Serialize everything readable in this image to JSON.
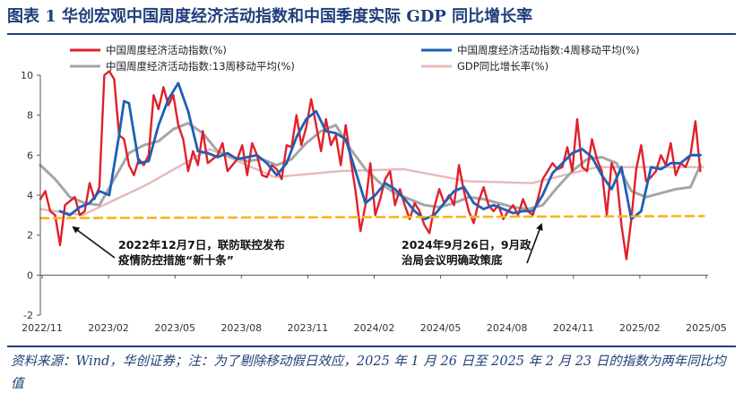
{
  "title": "图表 1   华创宏观中国周度经济活动指数和中国季度实际 GDP 同比增长率",
  "source_note": "资料来源：Wind，华创证券；注：为了剔除移动假日效应，2025 年 1 月 26 日至 2025 年 2 月 23 日的指数为两年同比均值",
  "annotations": [
    {
      "lines": [
        "2022年12月7日，联防联控发布",
        "疫情防控措施“新十条”"
      ],
      "date": "2022-12-07"
    },
    {
      "lines": [
        "2024年9月26日，9月政",
        "治局会议明确政策底"
      ],
      "date": "2024-09-26"
    }
  ],
  "chart_data": {
    "type": "line",
    "x_tick_labels": [
      "2022/11",
      "2023/02",
      "2023/05",
      "2023/08",
      "2023/11",
      "2024/02",
      "2024/05",
      "2024/08",
      "2024/11",
      "2025/02",
      "2025/05"
    ],
    "y_tick_labels": [
      "-2",
      "0",
      "2",
      "4",
      "6",
      "8",
      "10"
    ],
    "ylim": [
      -2,
      10
    ],
    "xlim": [
      "2022-11-01",
      "2025-06-07"
    ],
    "grid": false,
    "legend": "top",
    "colors": {
      "weekly": "#e0202a",
      "ma4": "#1f5fb4",
      "ma13": "#a6a6a6",
      "gdp": "#e8b8b8",
      "reference": "#f6b51e"
    },
    "series": [
      {
        "name": "中国周度经济活动指数(%)",
        "key": "weekly",
        "points": [
          [
            "2022-11-01",
            3.8
          ],
          [
            "2022-11-08",
            4.2
          ],
          [
            "2022-11-15",
            3.2
          ],
          [
            "2022-11-22",
            3.0
          ],
          [
            "2022-11-29",
            1.5
          ],
          [
            "2022-12-06",
            3.5
          ],
          [
            "2022-12-13",
            3.7
          ],
          [
            "2022-12-20",
            3.9
          ],
          [
            "2022-12-27",
            3.0
          ],
          [
            "2023-01-03",
            3.2
          ],
          [
            "2023-01-10",
            4.6
          ],
          [
            "2023-01-17",
            3.8
          ],
          [
            "2023-01-24",
            4.4
          ],
          [
            "2023-01-31",
            10.0
          ],
          [
            "2023-02-07",
            10.2
          ],
          [
            "2023-02-14",
            9.8
          ],
          [
            "2023-02-21",
            7.0
          ],
          [
            "2023-02-28",
            6.8
          ],
          [
            "2023-03-07",
            5.5
          ],
          [
            "2023-03-14",
            5.0
          ],
          [
            "2023-03-21",
            5.8
          ],
          [
            "2023-03-28",
            5.5
          ],
          [
            "2023-04-04",
            6.0
          ],
          [
            "2023-04-11",
            9.0
          ],
          [
            "2023-04-18",
            8.3
          ],
          [
            "2023-04-25",
            9.4
          ],
          [
            "2023-05-02",
            8.5
          ],
          [
            "2023-05-09",
            9.0
          ],
          [
            "2023-05-16",
            7.5
          ],
          [
            "2023-05-23",
            6.8
          ],
          [
            "2023-05-30",
            5.2
          ],
          [
            "2023-06-06",
            6.2
          ],
          [
            "2023-06-13",
            5.5
          ],
          [
            "2023-06-20",
            7.2
          ],
          [
            "2023-06-27",
            5.6
          ],
          [
            "2023-07-04",
            5.8
          ],
          [
            "2023-07-11",
            6.0
          ],
          [
            "2023-07-18",
            6.6
          ],
          [
            "2023-07-25",
            5.2
          ],
          [
            "2023-08-01",
            5.5
          ],
          [
            "2023-08-08",
            5.8
          ],
          [
            "2023-08-15",
            6.5
          ],
          [
            "2023-08-22",
            5.0
          ],
          [
            "2023-08-29",
            6.6
          ],
          [
            "2023-09-05",
            6.0
          ],
          [
            "2023-09-12",
            5.0
          ],
          [
            "2023-09-19",
            4.9
          ],
          [
            "2023-09-26",
            5.5
          ],
          [
            "2023-10-03",
            5.3
          ],
          [
            "2023-10-10",
            4.8
          ],
          [
            "2023-10-17",
            6.5
          ],
          [
            "2023-10-24",
            6.4
          ],
          [
            "2023-10-31",
            8.0
          ],
          [
            "2023-11-07",
            6.5
          ],
          [
            "2023-11-14",
            7.4
          ],
          [
            "2023-11-21",
            8.8
          ],
          [
            "2023-11-28",
            7.5
          ],
          [
            "2023-12-05",
            6.2
          ],
          [
            "2023-12-12",
            7.8
          ],
          [
            "2023-12-19",
            6.5
          ],
          [
            "2023-12-26",
            7.0
          ],
          [
            "2024-01-02",
            5.5
          ],
          [
            "2024-01-09",
            7.5
          ],
          [
            "2024-01-16",
            5.8
          ],
          [
            "2024-01-23",
            4.2
          ],
          [
            "2024-01-30",
            2.2
          ],
          [
            "2024-02-06",
            3.5
          ],
          [
            "2024-02-13",
            5.6
          ],
          [
            "2024-02-20",
            3.0
          ],
          [
            "2024-02-27",
            3.8
          ],
          [
            "2024-03-05",
            4.8
          ],
          [
            "2024-03-12",
            5.2
          ],
          [
            "2024-03-19",
            3.5
          ],
          [
            "2024-03-26",
            4.3
          ],
          [
            "2024-04-02",
            3.5
          ],
          [
            "2024-04-09",
            2.8
          ],
          [
            "2024-04-16",
            3.6
          ],
          [
            "2024-04-23",
            3.2
          ],
          [
            "2024-04-30",
            2.5
          ],
          [
            "2024-05-07",
            2.1
          ],
          [
            "2024-05-14",
            3.4
          ],
          [
            "2024-05-21",
            4.3
          ],
          [
            "2024-05-28",
            3.6
          ],
          [
            "2024-06-04",
            4.0
          ],
          [
            "2024-06-11",
            3.5
          ],
          [
            "2024-06-18",
            5.5
          ],
          [
            "2024-06-25",
            4.2
          ],
          [
            "2024-07-02",
            3.2
          ],
          [
            "2024-07-09",
            2.6
          ],
          [
            "2024-07-16",
            3.7
          ],
          [
            "2024-07-23",
            4.4
          ],
          [
            "2024-07-30",
            3.5
          ],
          [
            "2024-08-06",
            3.2
          ],
          [
            "2024-08-13",
            3.5
          ],
          [
            "2024-08-20",
            2.8
          ],
          [
            "2024-08-27",
            3.2
          ],
          [
            "2024-09-03",
            3.5
          ],
          [
            "2024-09-10",
            3.0
          ],
          [
            "2024-09-17",
            3.8
          ],
          [
            "2024-09-24",
            3.2
          ],
          [
            "2024-10-01",
            3.0
          ],
          [
            "2024-10-08",
            3.8
          ],
          [
            "2024-10-15",
            4.8
          ],
          [
            "2024-10-22",
            5.2
          ],
          [
            "2024-10-29",
            5.6
          ],
          [
            "2024-11-05",
            5.3
          ],
          [
            "2024-11-12",
            5.4
          ],
          [
            "2024-11-19",
            6.4
          ],
          [
            "2024-11-26",
            5.2
          ],
          [
            "2024-12-03",
            7.8
          ],
          [
            "2024-12-10",
            5.4
          ],
          [
            "2024-12-17",
            5.2
          ],
          [
            "2024-12-24",
            6.8
          ],
          [
            "2024-12-31",
            5.8
          ],
          [
            "2025-01-07",
            5.2
          ],
          [
            "2025-01-14",
            3.0
          ],
          [
            "2025-01-21",
            5.6
          ],
          [
            "2025-01-28",
            5.0
          ],
          [
            "2025-02-04",
            2.5
          ],
          [
            "2025-02-11",
            0.8
          ],
          [
            "2025-02-18",
            2.8
          ],
          [
            "2025-02-25",
            5.3
          ],
          [
            "2025-03-04",
            6.5
          ],
          [
            "2025-03-11",
            4.7
          ],
          [
            "2025-03-18",
            4.9
          ],
          [
            "2025-03-25",
            5.2
          ],
          [
            "2025-04-01",
            6.0
          ],
          [
            "2025-04-08",
            5.5
          ],
          [
            "2025-04-15",
            6.6
          ],
          [
            "2025-04-22",
            5.0
          ],
          [
            "2025-04-29",
            5.6
          ],
          [
            "2025-05-06",
            5.4
          ],
          [
            "2025-05-13",
            6.0
          ],
          [
            "2025-05-20",
            7.7
          ],
          [
            "2025-05-27",
            5.2
          ]
        ]
      },
      {
        "name": "中国周度经济活动指数:4周移动平均(%)",
        "key": "ma4",
        "points": [
          [
            "2022-11-29",
            3.2
          ],
          [
            "2022-12-13",
            3.0
          ],
          [
            "2022-12-27",
            3.4
          ],
          [
            "2023-01-10",
            3.6
          ],
          [
            "2023-01-24",
            4.2
          ],
          [
            "2023-02-07",
            4.0
          ],
          [
            "2023-02-21",
            7.0
          ],
          [
            "2023-02-28",
            8.7
          ],
          [
            "2023-03-07",
            8.6
          ],
          [
            "2023-03-21",
            5.6
          ],
          [
            "2023-04-04",
            5.7
          ],
          [
            "2023-04-18",
            7.5
          ],
          [
            "2023-05-02",
            8.8
          ],
          [
            "2023-05-16",
            9.6
          ],
          [
            "2023-05-30",
            8.2
          ],
          [
            "2023-06-13",
            6.2
          ],
          [
            "2023-06-27",
            6.1
          ],
          [
            "2023-07-11",
            5.9
          ],
          [
            "2023-07-25",
            6.1
          ],
          [
            "2023-08-08",
            5.8
          ],
          [
            "2023-08-22",
            5.9
          ],
          [
            "2023-09-05",
            6.0
          ],
          [
            "2023-09-19",
            5.6
          ],
          [
            "2023-10-03",
            5.0
          ],
          [
            "2023-10-17",
            5.6
          ],
          [
            "2023-10-31",
            6.9
          ],
          [
            "2023-11-14",
            7.8
          ],
          [
            "2023-11-28",
            8.2
          ],
          [
            "2023-12-12",
            7.2
          ],
          [
            "2023-12-26",
            7.1
          ],
          [
            "2024-01-09",
            6.8
          ],
          [
            "2024-01-23",
            5.2
          ],
          [
            "2024-02-06",
            3.6
          ],
          [
            "2024-02-20",
            4.0
          ],
          [
            "2024-03-05",
            4.6
          ],
          [
            "2024-03-19",
            4.3
          ],
          [
            "2024-04-02",
            3.8
          ],
          [
            "2024-04-16",
            3.2
          ],
          [
            "2024-04-30",
            2.8
          ],
          [
            "2024-05-14",
            3.0
          ],
          [
            "2024-05-28",
            3.6
          ],
          [
            "2024-06-11",
            4.2
          ],
          [
            "2024-06-25",
            4.4
          ],
          [
            "2024-07-09",
            3.6
          ],
          [
            "2024-07-23",
            3.3
          ],
          [
            "2024-08-06",
            3.5
          ],
          [
            "2024-08-20",
            3.3
          ],
          [
            "2024-09-03",
            3.1
          ],
          [
            "2024-09-17",
            3.2
          ],
          [
            "2024-10-01",
            3.2
          ],
          [
            "2024-10-15",
            4.0
          ],
          [
            "2024-10-29",
            5.1
          ],
          [
            "2024-11-12",
            5.6
          ],
          [
            "2024-11-26",
            6.1
          ],
          [
            "2024-12-10",
            6.3
          ],
          [
            "2024-12-24",
            5.9
          ],
          [
            "2025-01-07",
            5.0
          ],
          [
            "2025-01-21",
            4.3
          ],
          [
            "2025-02-04",
            5.4
          ],
          [
            "2025-02-18",
            2.8
          ],
          [
            "2025-03-04",
            3.2
          ],
          [
            "2025-03-18",
            5.4
          ],
          [
            "2025-04-01",
            5.3
          ],
          [
            "2025-04-15",
            5.6
          ],
          [
            "2025-04-29",
            5.6
          ],
          [
            "2025-05-13",
            6.0
          ],
          [
            "2025-05-27",
            6.0
          ]
        ]
      },
      {
        "name": "中国周度经济活动指数:13周移动平均(%)",
        "key": "ma13",
        "points": [
          [
            "2022-11-01",
            5.5
          ],
          [
            "2022-11-22",
            4.8
          ],
          [
            "2022-12-13",
            3.9
          ],
          [
            "2023-01-03",
            3.6
          ],
          [
            "2023-01-24",
            3.5
          ],
          [
            "2023-02-14",
            4.8
          ],
          [
            "2023-03-07",
            6.1
          ],
          [
            "2023-03-28",
            6.5
          ],
          [
            "2023-04-18",
            6.7
          ],
          [
            "2023-05-09",
            7.3
          ],
          [
            "2023-05-30",
            7.6
          ],
          [
            "2023-06-20",
            7.1
          ],
          [
            "2023-07-11",
            6.2
          ],
          [
            "2023-08-01",
            5.9
          ],
          [
            "2023-08-22",
            5.7
          ],
          [
            "2023-09-12",
            5.8
          ],
          [
            "2023-10-03",
            5.5
          ],
          [
            "2023-10-24",
            5.8
          ],
          [
            "2023-11-14",
            6.6
          ],
          [
            "2023-12-05",
            7.2
          ],
          [
            "2023-12-26",
            7.5
          ],
          [
            "2024-01-16",
            6.3
          ],
          [
            "2024-02-06",
            5.3
          ],
          [
            "2024-02-27",
            4.6
          ],
          [
            "2024-03-19",
            4.1
          ],
          [
            "2024-04-09",
            3.8
          ],
          [
            "2024-04-30",
            3.5
          ],
          [
            "2024-05-21",
            3.4
          ],
          [
            "2024-06-11",
            3.6
          ],
          [
            "2024-07-02",
            3.9
          ],
          [
            "2024-07-23",
            3.8
          ],
          [
            "2024-08-13",
            3.6
          ],
          [
            "2024-09-03",
            3.4
          ],
          [
            "2024-09-24",
            3.3
          ],
          [
            "2024-10-15",
            3.5
          ],
          [
            "2024-11-05",
            4.4
          ],
          [
            "2024-11-26",
            5.2
          ],
          [
            "2024-12-17",
            5.8
          ],
          [
            "2025-01-07",
            5.9
          ],
          [
            "2025-01-28",
            5.6
          ],
          [
            "2025-02-18",
            4.2
          ],
          [
            "2025-03-11",
            3.9
          ],
          [
            "2025-04-01",
            4.1
          ],
          [
            "2025-04-22",
            4.3
          ],
          [
            "2025-05-13",
            4.4
          ],
          [
            "2025-05-27",
            5.5
          ]
        ]
      },
      {
        "name": "GDP同比增长率(%)",
        "key": "gdp",
        "points": [
          [
            "2022-11-01",
            3.3
          ],
          [
            "2022-12-31",
            3.0
          ],
          [
            "2023-03-31",
            4.5
          ],
          [
            "2023-06-30",
            6.3
          ],
          [
            "2023-09-30",
            4.9
          ],
          [
            "2023-12-31",
            5.2
          ],
          [
            "2024-03-31",
            5.3
          ],
          [
            "2024-06-30",
            4.7
          ],
          [
            "2024-09-30",
            4.6
          ],
          [
            "2024-12-31",
            5.4
          ],
          [
            "2025-03-31",
            5.4
          ],
          [
            "2025-05-31",
            5.4
          ]
        ]
      },
      {
        "key": "reference",
        "points": [
          [
            "2022-11-01",
            2.85
          ],
          [
            "2025-06-01",
            2.95
          ]
        ]
      }
    ]
  }
}
